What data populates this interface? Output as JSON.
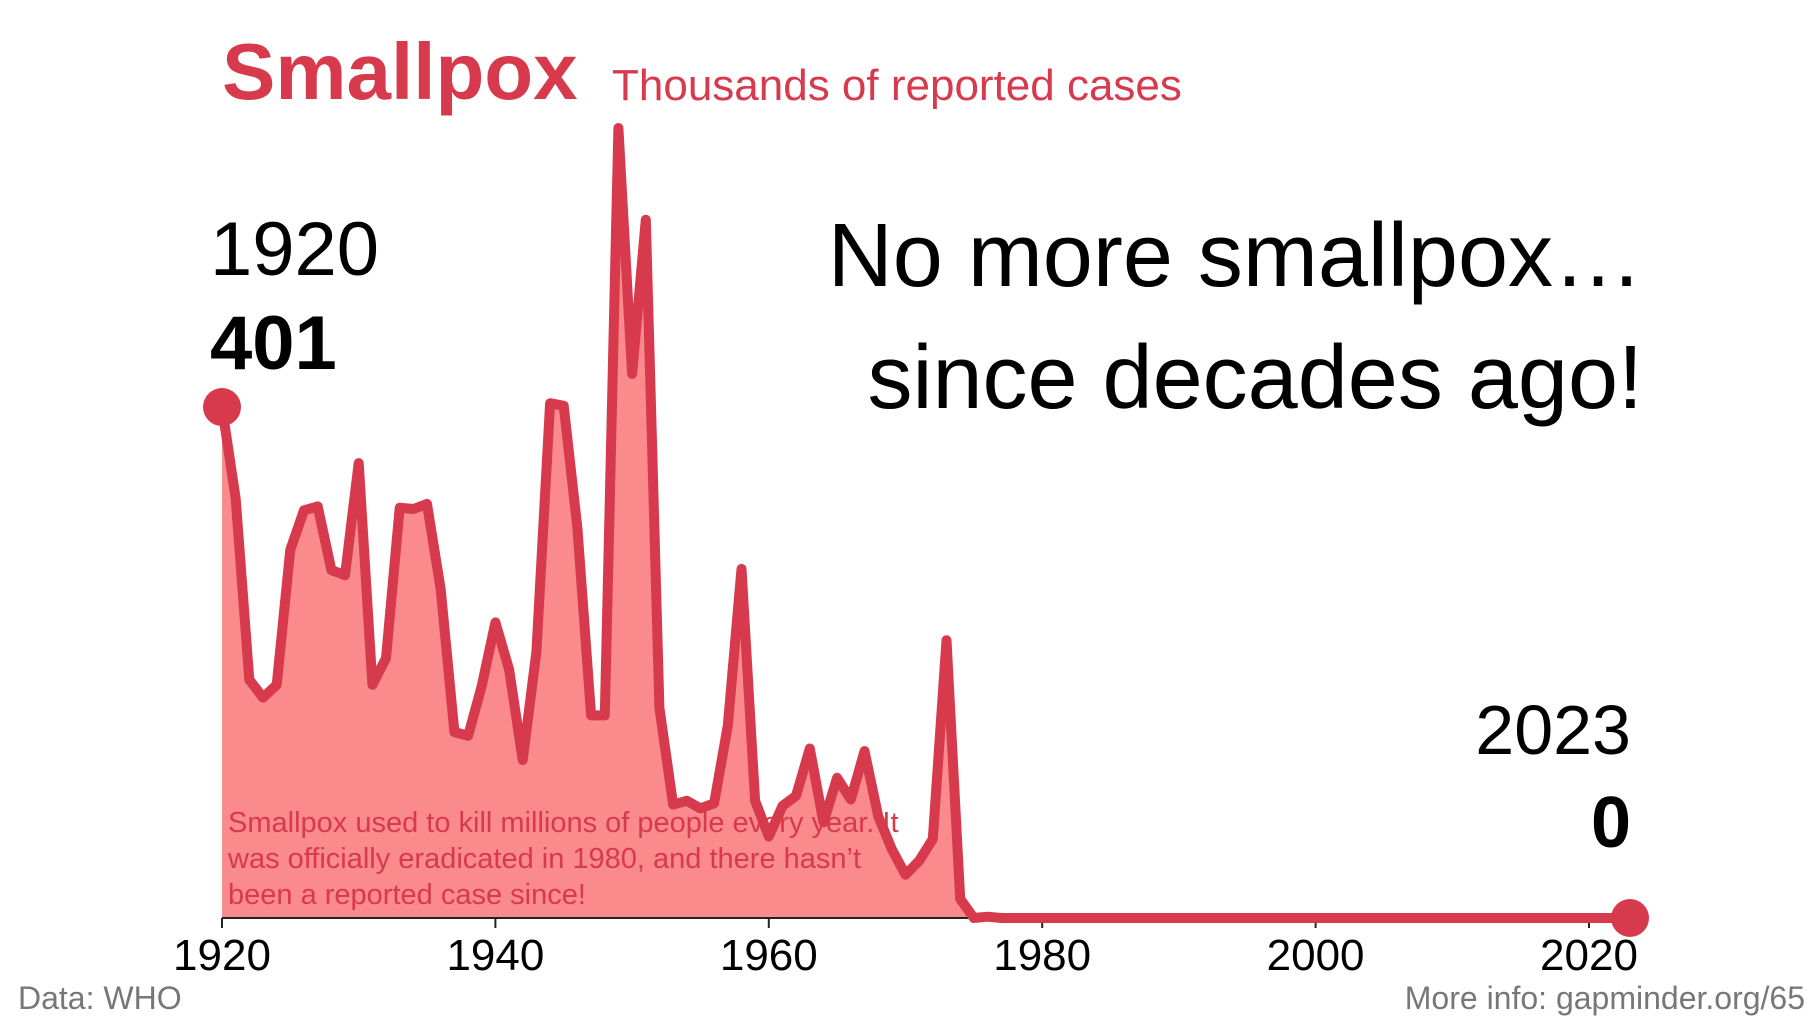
{
  "chart_data": {
    "type": "area",
    "title": "Smallpox",
    "subtitle": "Thousands of reported cases",
    "xlabel": "",
    "ylabel": "",
    "x": [
      1920,
      1921,
      1922,
      1923,
      1924,
      1925,
      1926,
      1927,
      1928,
      1929,
      1930,
      1931,
      1932,
      1933,
      1934,
      1935,
      1936,
      1937,
      1938,
      1939,
      1940,
      1941,
      1942,
      1943,
      1944,
      1945,
      1946,
      1947,
      1948,
      1949,
      1950,
      1951,
      1952,
      1953,
      1954,
      1955,
      1956,
      1957,
      1958,
      1959,
      1960,
      1961,
      1962,
      1963,
      1964,
      1965,
      1966,
      1967,
      1968,
      1969,
      1970,
      1971,
      1972,
      1973,
      1974,
      1975,
      1976,
      1977,
      1978,
      1979,
      1980,
      1990,
      2000,
      2010,
      2020,
      2023
    ],
    "values": [
      401,
      329,
      187,
      173,
      183,
      289,
      320,
      323,
      273,
      269,
      357,
      183,
      204,
      322,
      321,
      325,
      258,
      146,
      143,
      182,
      232,
      195,
      124,
      209,
      404,
      402,
      306,
      159,
      159,
      620,
      427,
      548,
      165,
      89,
      92,
      86,
      90,
      151,
      274,
      92,
      64,
      88,
      96,
      133,
      75,
      110,
      93,
      131,
      80,
      54,
      34,
      45,
      62,
      218,
      15,
      0,
      1,
      0,
      0,
      0,
      0,
      0,
      0,
      0,
      0,
      0
    ],
    "xlim": [
      1920,
      2023
    ],
    "ylim": [
      0,
      620
    ],
    "x_ticks": [
      1920,
      1940,
      1960,
      1980,
      2000,
      2020
    ],
    "grid": false,
    "legend": "none",
    "line_color": "#d73a4d",
    "fill_color": "#fa8a8c",
    "start": {
      "year": "1920",
      "value": "401"
    },
    "end": {
      "year": "2023",
      "value": "0"
    },
    "headline": "No more smallpox… since decades ago!",
    "annotation": "Smallpox used to kill millions of people every year. It was officially eradicated in 1980, and there hasn’t been a reported case since!"
  },
  "footer": {
    "source": "Data: WHO",
    "more_info": "More info: gapminder.org/65"
  }
}
